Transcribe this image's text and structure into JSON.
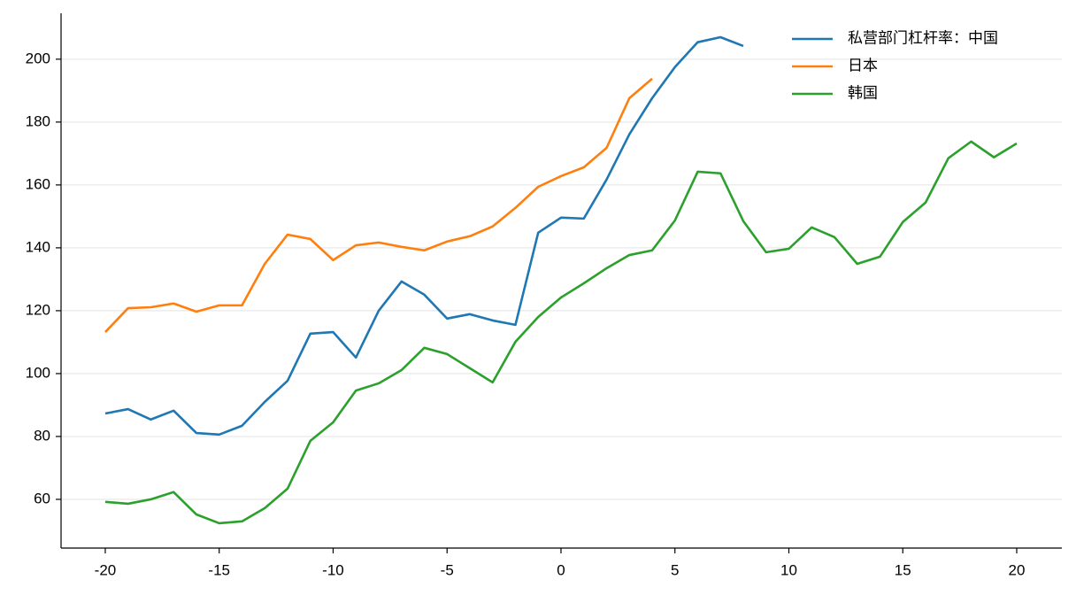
{
  "chart_data": {
    "type": "line",
    "x": [
      -20,
      -19,
      -18,
      -17,
      -16,
      -15,
      -14,
      -13,
      -12,
      -11,
      -10,
      -9,
      -8,
      -7,
      -6,
      -5,
      -4,
      -3,
      -2,
      -1,
      0,
      1,
      2,
      3,
      4,
      5,
      6,
      7,
      8,
      9,
      10,
      11,
      12,
      13,
      14,
      15,
      16,
      17,
      18,
      19,
      20
    ],
    "series": [
      {
        "name": "私营部门杠杆率：中国",
        "color": "#1f77b4",
        "values": [
          87.3,
          88.7,
          85.4,
          88.2,
          81.1,
          80.6,
          83.4,
          91.0,
          97.7,
          112.7,
          113.2,
          105.1,
          120.0,
          129.3,
          125.1,
          117.5,
          118.9,
          116.9,
          115.5,
          144.8,
          149.6,
          149.3,
          161.7,
          176.1,
          187.6,
          197.5,
          205.4,
          207.0,
          204.2,
          null,
          null,
          null,
          null,
          null,
          null,
          null,
          null,
          null,
          null,
          null,
          null
        ]
      },
      {
        "name": "日本",
        "color": "#ff7f0e",
        "values": [
          113.2,
          120.8,
          121.1,
          122.3,
          119.7,
          121.7,
          121.7,
          134.9,
          144.2,
          142.8,
          136.1,
          140.8,
          141.7,
          140.3,
          139.2,
          142.0,
          143.7,
          146.8,
          152.7,
          159.4,
          162.8,
          165.6,
          171.8,
          187.6,
          193.8,
          null,
          null,
          null,
          null,
          null,
          null,
          null,
          null,
          null,
          null,
          null,
          null,
          null,
          null,
          null,
          null
        ]
      },
      {
        "name": "韩国",
        "color": "#2ca02c",
        "values": [
          59.2,
          58.6,
          60.0,
          62.3,
          55.2,
          52.4,
          53.0,
          57.2,
          63.4,
          78.6,
          84.5,
          94.6,
          96.9,
          101.1,
          108.2,
          106.2,
          101.7,
          97.2,
          110.1,
          118.0,
          124.2,
          128.7,
          133.5,
          137.7,
          139.2,
          148.7,
          164.2,
          163.7,
          148.5,
          138.6,
          139.7,
          146.5,
          143.4,
          134.9,
          137.2,
          148.2,
          154.4,
          168.5,
          173.8,
          168.8,
          173.2
        ]
      }
    ],
    "xlim": [
      -21.94,
      21.98
    ],
    "xticks": [
      -20,
      -15,
      -10,
      -5,
      0,
      5,
      10,
      15,
      20
    ],
    "ylim": [
      44.5,
      214.6
    ],
    "yticks": [
      60,
      80,
      100,
      120,
      140,
      160,
      180,
      200
    ],
    "grid": true,
    "legend": "upper right"
  }
}
